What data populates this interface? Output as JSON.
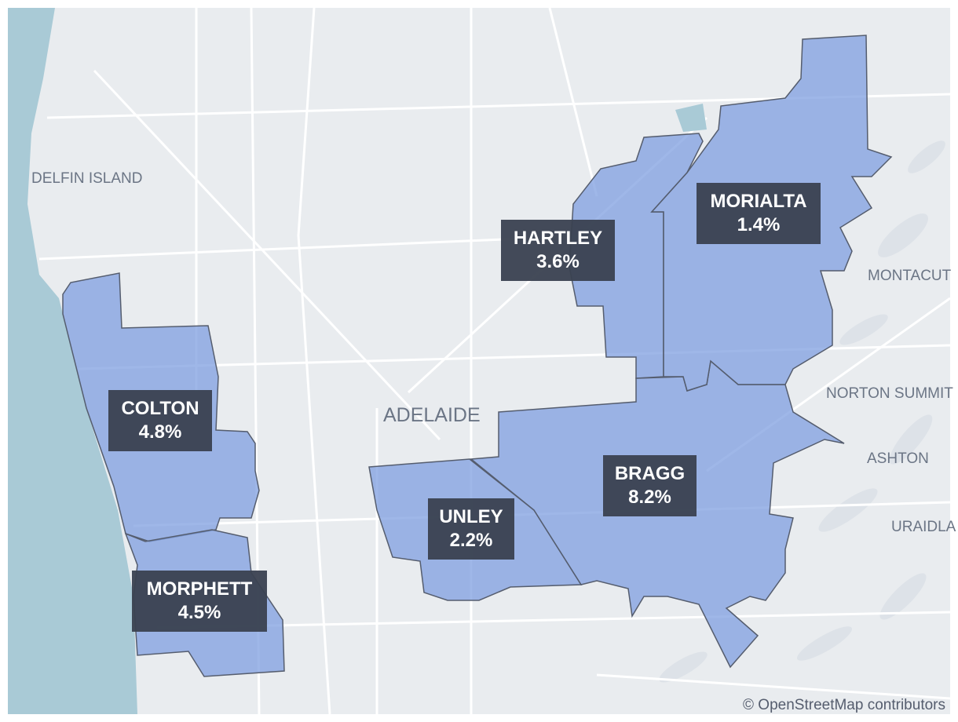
{
  "places": [
    "DELFIN ISLAND",
    "ADELAIDE",
    "MONTACUT",
    "NORTON SUMMIT",
    "ASHTON",
    "URAIDLA"
  ],
  "districts": [
    {
      "name": "COLTON",
      "label": "4.8%"
    },
    {
      "name": "MORPHETT",
      "label": "4.5%"
    },
    {
      "name": "UNLEY",
      "label": "2.2%"
    },
    {
      "name": "BRAGG",
      "label": "8.2%"
    },
    {
      "name": "HARTLEY",
      "label": "3.6%"
    },
    {
      "name": "MORIALTA",
      "label": "1.4%"
    }
  ],
  "attribution": "© OpenStreetMap contributors"
}
